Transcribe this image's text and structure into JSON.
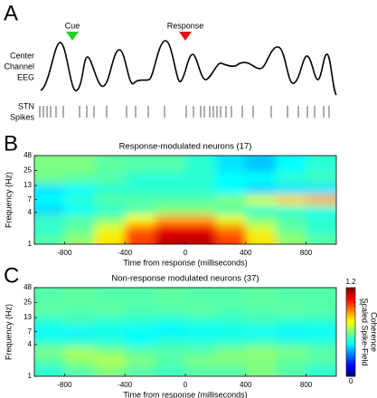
{
  "panel_a": {
    "letter": "A",
    "markers": [
      {
        "label": "Cue",
        "color": "#1fd21f"
      },
      {
        "label": "Response",
        "color": "#e0141a"
      }
    ],
    "eeg_label": [
      "Center",
      "Channel",
      "EEG"
    ],
    "spikes_label": [
      "STN",
      "Spikes"
    ]
  },
  "chart_data": [
    {
      "type": "heatmap",
      "panel": "B",
      "title": "Response-modulated neurons (17)",
      "xlabel": "Time from response (milliseconds)",
      "ylabel": "Frequency (Hz)",
      "xlim": [
        -1000,
        1000
      ],
      "xticks": [
        -800,
        -400,
        0,
        400,
        800
      ],
      "ylim": [
        1,
        48
      ],
      "yticks": [
        1,
        4,
        7,
        13,
        25,
        48
      ],
      "ylog": true,
      "colormap": "jet",
      "zlim": [
        0,
        1.2
      ],
      "x": [
        -900,
        -700,
        -500,
        -300,
        -100,
        100,
        300,
        500,
        700,
        900
      ],
      "y": [
        1.3,
        2,
        3,
        4.5,
        7,
        11,
        18,
        32
      ],
      "z": [
        [
          0.55,
          0.62,
          0.78,
          0.98,
          1.12,
          1.12,
          0.98,
          0.78,
          0.62,
          0.55
        ],
        [
          0.5,
          0.56,
          0.72,
          0.92,
          1.06,
          1.06,
          0.9,
          0.7,
          0.56,
          0.5
        ],
        [
          0.52,
          0.55,
          0.6,
          0.74,
          0.86,
          0.86,
          0.72,
          0.6,
          0.55,
          0.5
        ],
        [
          0.4,
          0.45,
          0.5,
          0.55,
          0.6,
          0.6,
          0.55,
          0.5,
          0.5,
          0.48
        ],
        [
          0.45,
          0.5,
          0.55,
          0.55,
          0.55,
          0.55,
          0.6,
          0.7,
          0.8,
          0.85
        ],
        [
          0.42,
          0.45,
          0.5,
          0.5,
          0.5,
          0.5,
          0.45,
          0.4,
          0.42,
          0.42
        ],
        [
          0.58,
          0.56,
          0.55,
          0.5,
          0.5,
          0.5,
          0.45,
          0.45,
          0.5,
          0.52
        ],
        [
          0.6,
          0.6,
          0.56,
          0.55,
          0.55,
          0.5,
          0.42,
          0.38,
          0.45,
          0.5
        ]
      ]
    },
    {
      "type": "heatmap",
      "panel": "C",
      "title": "Non-response modulated neurons (37)",
      "xlabel": "Time from response (milliseconds)",
      "ylabel": "Frequency (Hz)",
      "xlim": [
        -1000,
        1000
      ],
      "xticks": [
        -800,
        -400,
        0,
        400,
        800
      ],
      "ylim": [
        1,
        48
      ],
      "yticks": [
        1,
        4,
        7,
        13,
        25,
        48
      ],
      "ylog": true,
      "colormap": "jet",
      "zlim": [
        0,
        1.2
      ],
      "x": [
        -900,
        -700,
        -500,
        -300,
        -100,
        100,
        300,
        500,
        700,
        900
      ],
      "y": [
        1.3,
        2,
        3,
        4.5,
        7,
        11,
        18,
        32
      ],
      "z": [
        [
          0.5,
          0.55,
          0.6,
          0.55,
          0.52,
          0.55,
          0.55,
          0.6,
          0.55,
          0.5
        ],
        [
          0.55,
          0.62,
          0.66,
          0.6,
          0.55,
          0.6,
          0.6,
          0.6,
          0.56,
          0.55
        ],
        [
          0.6,
          0.65,
          0.6,
          0.56,
          0.55,
          0.55,
          0.6,
          0.62,
          0.6,
          0.56
        ],
        [
          0.5,
          0.5,
          0.5,
          0.46,
          0.5,
          0.5,
          0.5,
          0.52,
          0.5,
          0.5
        ],
        [
          0.45,
          0.44,
          0.46,
          0.45,
          0.44,
          0.45,
          0.46,
          0.45,
          0.44,
          0.45
        ],
        [
          0.5,
          0.52,
          0.5,
          0.5,
          0.48,
          0.5,
          0.5,
          0.52,
          0.5,
          0.5
        ],
        [
          0.56,
          0.55,
          0.56,
          0.54,
          0.55,
          0.56,
          0.54,
          0.55,
          0.56,
          0.55
        ],
        [
          0.55,
          0.56,
          0.55,
          0.55,
          0.56,
          0.55,
          0.55,
          0.56,
          0.55,
          0.55
        ]
      ],
      "colorbar": {
        "lim": [
          0,
          1.2
        ],
        "ticks": [
          0,
          1,
          1.2
        ],
        "label": [
          "Scaled Spike-Field",
          "Coherence"
        ]
      }
    }
  ]
}
